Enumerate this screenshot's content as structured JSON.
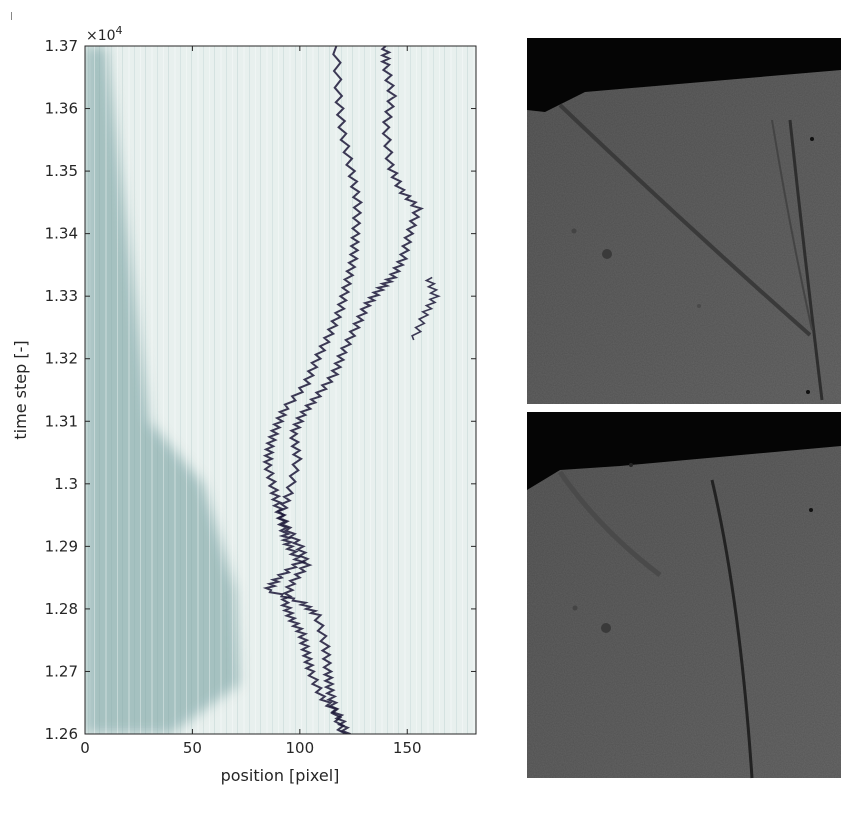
{
  "chart_data": {
    "type": "heatmap",
    "title": "",
    "xlabel": "position [pixel]",
    "ylabel": "time step [-]",
    "xlim": [
      0,
      182
    ],
    "ylim": [
      12600,
      13700
    ],
    "x_ticks": [
      0,
      50,
      100,
      150
    ],
    "x_tick_labels": [
      "0",
      "50",
      "100",
      "150"
    ],
    "y_ticks": [
      12600,
      12700,
      12800,
      12900,
      13000,
      13100,
      13200,
      13300,
      13400,
      13500,
      13600,
      13700
    ],
    "y_tick_labels": [
      "1.26",
      "1.27",
      "1.28",
      "1.29",
      "1.3",
      "1.31",
      "1.32",
      "1.33",
      "1.34",
      "1.35",
      "1.36",
      "1.37"
    ],
    "y_exponent_label": "×10",
    "y_exponent_power": "4",
    "colors": {
      "background": "#e8f0ee",
      "dark_band": "#9ebcbc",
      "trace": "#1c1838",
      "axis": "#262626"
    },
    "traces": [
      {
        "name": "",
        "points": [
          [
            120,
            12600
          ],
          [
            116,
            12640
          ],
          [
            114,
            12670
          ],
          [
            113,
            12700
          ],
          [
            112,
            12740
          ],
          [
            108,
            12790
          ],
          [
            101,
            12810
          ],
          [
            85,
            12830
          ],
          [
            90,
            12850
          ],
          [
            100,
            12875
          ],
          [
            95,
            12900
          ],
          [
            93,
            12920
          ],
          [
            91,
            12950
          ],
          [
            95,
            12985
          ],
          [
            99,
            13040
          ],
          [
            97,
            13080
          ],
          [
            101,
            13110
          ],
          [
            108,
            13140
          ],
          [
            116,
            13175
          ],
          [
            120,
            13210
          ],
          [
            126,
            13250
          ],
          [
            131,
            13285
          ],
          [
            137,
            13310
          ],
          [
            143,
            13330
          ],
          [
            148,
            13360
          ],
          [
            151,
            13400
          ],
          [
            155,
            13440
          ],
          [
            147,
            13470
          ],
          [
            142,
            13510
          ],
          [
            140,
            13570
          ],
          [
            143,
            13620
          ],
          [
            140,
            13670
          ],
          [
            140,
            13700
          ]
        ]
      },
      {
        "name": "",
        "points": [
          [
            122,
            12600
          ],
          [
            118,
            12630
          ],
          [
            110,
            12660
          ],
          [
            105,
            12700
          ],
          [
            103,
            12730
          ],
          [
            101,
            12760
          ],
          [
            96,
            12785
          ],
          [
            93,
            12810
          ],
          [
            96,
            12840
          ],
          [
            103,
            12870
          ],
          [
            100,
            12900
          ],
          [
            94,
            12930
          ],
          [
            90,
            12960
          ],
          [
            88,
            12990
          ],
          [
            85,
            13030
          ],
          [
            86,
            13060
          ],
          [
            89,
            13090
          ],
          [
            93,
            13120
          ],
          [
            103,
            13160
          ],
          [
            108,
            13200
          ],
          [
            114,
            13240
          ],
          [
            119,
            13280
          ],
          [
            122,
            13320
          ],
          [
            125,
            13360
          ],
          [
            126,
            13400
          ],
          [
            127,
            13450
          ],
          [
            124,
            13500
          ],
          [
            120,
            13560
          ],
          [
            118,
            13620
          ],
          [
            117,
            13700
          ]
        ]
      },
      {
        "name": "",
        "points": [
          [
            160,
            13330
          ],
          [
            163,
            13300
          ],
          [
            158,
            13270
          ],
          [
            153,
            13230
          ]
        ]
      }
    ],
    "bands": [
      {
        "name": "",
        "points": [
          [
            40,
            12600
          ],
          [
            72,
            12680
          ],
          [
            70,
            12830
          ],
          [
            55,
            13000
          ],
          [
            30,
            13100
          ],
          [
            10,
            13700
          ]
        ]
      }
    ]
  },
  "panels": {
    "top_image": {
      "description_icon": "shock-wave-photo-icon"
    },
    "bottom_image": {
      "description_icon": "shock-wave-photo-icon"
    }
  }
}
